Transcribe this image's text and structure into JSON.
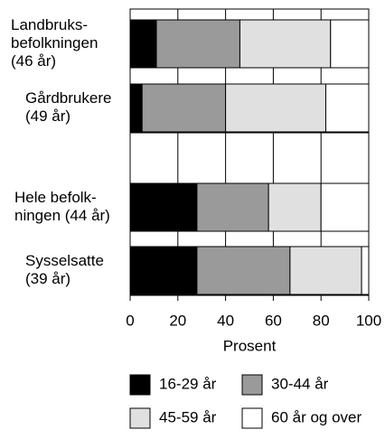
{
  "chart_data": {
    "type": "stacked-barh",
    "categories": [
      [
        "Landbruks-",
        "befolkningen",
        "(46 år)"
      ],
      [
        "Gårdbrukere",
        "(49 år)"
      ],
      null,
      [
        "Hele befolk-",
        "ningen (44 år)"
      ],
      [
        "Sysselsatte",
        "(39 år)"
      ]
    ],
    "series": [
      {
        "name": "16-29 år",
        "color": "#000000",
        "values": [
          11,
          5,
          null,
          28,
          28
        ]
      },
      {
        "name": "30-44 år",
        "color": "#9a9a9a",
        "values": [
          35,
          35,
          null,
          30,
          39
        ]
      },
      {
        "name": "45-59 år",
        "color": "#e0e0e0",
        "values": [
          38,
          42,
          null,
          22,
          30
        ]
      },
      {
        "name": "60 år og over",
        "color": "#ffffff",
        "values": [
          16,
          18,
          null,
          20,
          3
        ]
      }
    ],
    "xlabel": "Prosent",
    "xlim": [
      0,
      100
    ],
    "xticks": [
      0,
      20,
      40,
      60,
      80,
      100
    ],
    "grid": true
  }
}
